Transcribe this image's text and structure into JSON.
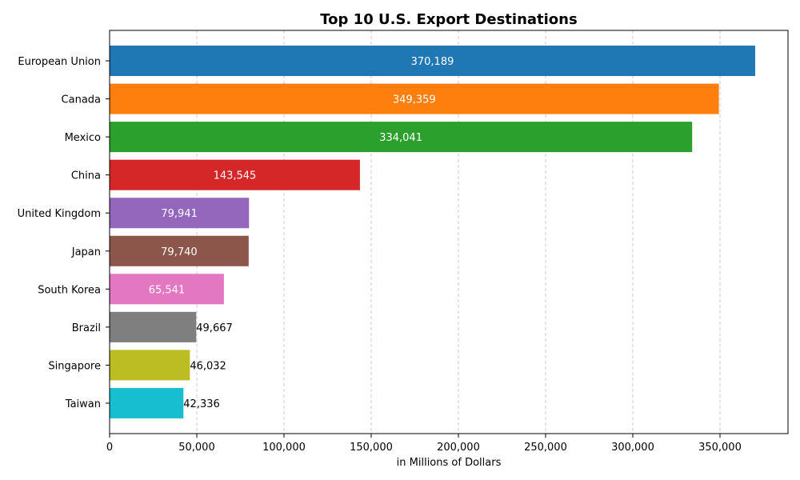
{
  "chart_data": {
    "type": "bar",
    "orientation": "horizontal",
    "title": "Top 10 U.S. Export Destinations",
    "xlabel": "in Millions of Dollars",
    "ylabel": "",
    "categories": [
      "European Union",
      "Canada",
      "Mexico",
      "China",
      "United Kingdom",
      "Japan",
      "South Korea",
      "Brazil",
      "Singapore",
      "Taiwan"
    ],
    "values": [
      370189,
      349359,
      334041,
      143545,
      79941,
      79740,
      65541,
      49667,
      46032,
      42336
    ],
    "value_labels": [
      "370,189",
      "349,359",
      "334,041",
      "143,545",
      "79,941",
      "79,740",
      "65,541",
      "49,667",
      "46,032",
      "42,336"
    ],
    "colors": [
      "#1f77b4",
      "#ff7f0e",
      "#2ca02c",
      "#d62728",
      "#9467bd",
      "#8c564b",
      "#e377c2",
      "#7f7f7f",
      "#bcbd22",
      "#17becf"
    ],
    "xlim": [
      0,
      389000
    ],
    "xticks": [
      0,
      50000,
      100000,
      150000,
      200000,
      250000,
      300000,
      350000
    ],
    "xtick_labels": [
      "0",
      "50,000",
      "100,000",
      "150,000",
      "200,000",
      "250,000",
      "300,000",
      "350,000"
    ],
    "grid": "x-dashed",
    "label_inside_threshold": 60000
  }
}
